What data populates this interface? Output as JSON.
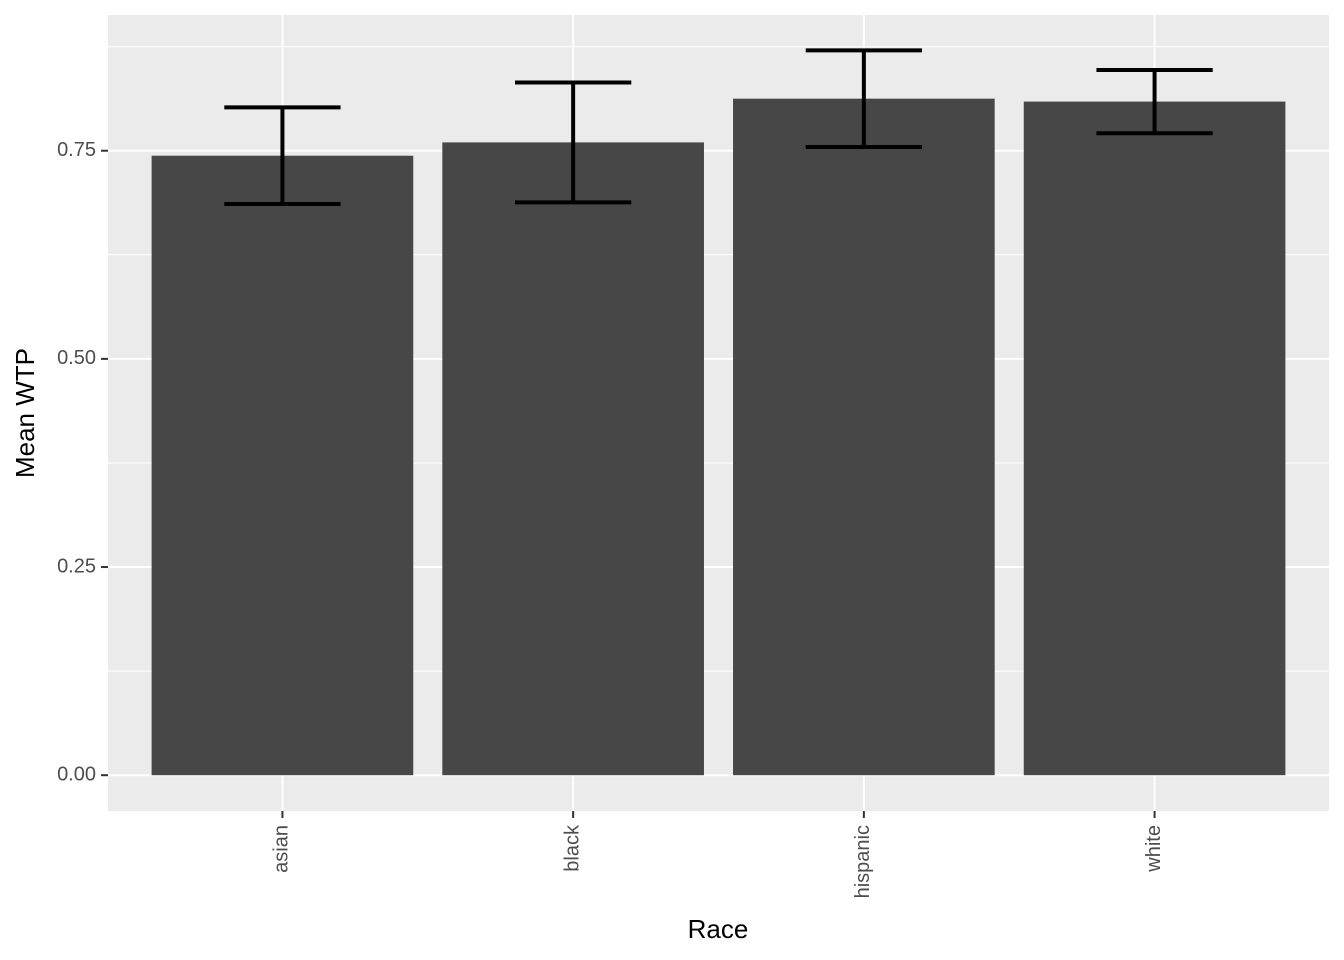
{
  "chart_data": {
    "type": "bar",
    "x_label": "Race",
    "y_label": "Mean WTP",
    "categories": [
      "asian",
      "black",
      "hispanic",
      "white"
    ],
    "values": [
      0.744,
      0.76,
      0.8125,
      0.809
    ],
    "errors": [
      0.058,
      0.072,
      0.058,
      0.038
    ],
    "color": "#474747",
    "ylim": [
      -0.043,
      0.913
    ],
    "yticks": [
      {
        "value": 0,
        "label": "0.00"
      },
      {
        "value": 0.25,
        "label": "0.25"
      },
      {
        "value": 0.5,
        "label": "0.50"
      },
      {
        "value": 0.75,
        "label": "0.75"
      }
    ],
    "grid": true
  }
}
